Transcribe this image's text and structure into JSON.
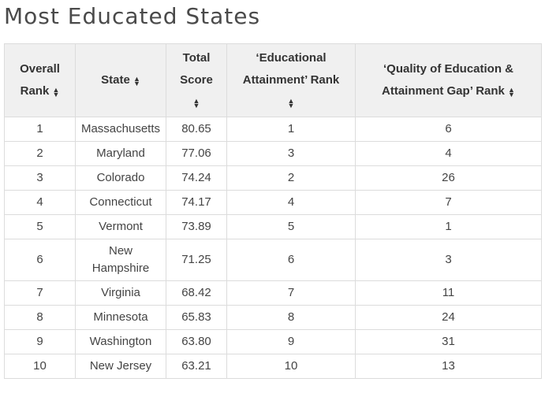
{
  "title": "Most Educated States",
  "columns": [
    {
      "label_lines": [
        "Overall",
        "Rank"
      ],
      "sort_icon": "sort-arrows-icon"
    },
    {
      "label_lines": [
        "State"
      ],
      "sort_icon": "sort-arrows-icon"
    },
    {
      "label_lines": [
        "Total",
        "Score"
      ],
      "sort_icon": "sort-arrows-icon"
    },
    {
      "label_lines": [
        "‘Educational",
        "Attainment’ Rank"
      ],
      "sort_icon": "sort-arrows-icon"
    },
    {
      "label_lines": [
        "‘Quality of Education &",
        "Attainment Gap’ Rank"
      ],
      "sort_icon": "sort-arrows-icon"
    }
  ],
  "rows": [
    {
      "rank": "1",
      "state": "Massachusetts",
      "score": "80.65",
      "attainment": "1",
      "quality": "6"
    },
    {
      "rank": "2",
      "state": "Maryland",
      "score": "77.06",
      "attainment": "3",
      "quality": "4"
    },
    {
      "rank": "3",
      "state": "Colorado",
      "score": "74.24",
      "attainment": "2",
      "quality": "26"
    },
    {
      "rank": "4",
      "state": "Connecticut",
      "score": "74.17",
      "attainment": "4",
      "quality": "7"
    },
    {
      "rank": "5",
      "state": "Vermont",
      "score": "73.89",
      "attainment": "5",
      "quality": "1"
    },
    {
      "rank": "6",
      "state": "New Hampshire",
      "score": "71.25",
      "attainment": "6",
      "quality": "3"
    },
    {
      "rank": "7",
      "state": "Virginia",
      "score": "68.42",
      "attainment": "7",
      "quality": "11"
    },
    {
      "rank": "8",
      "state": "Minnesota",
      "score": "65.83",
      "attainment": "8",
      "quality": "24"
    },
    {
      "rank": "9",
      "state": "Washington",
      "score": "63.80",
      "attainment": "9",
      "quality": "31"
    },
    {
      "rank": "10",
      "state": "New Jersey",
      "score": "63.21",
      "attainment": "10",
      "quality": "13"
    }
  ]
}
